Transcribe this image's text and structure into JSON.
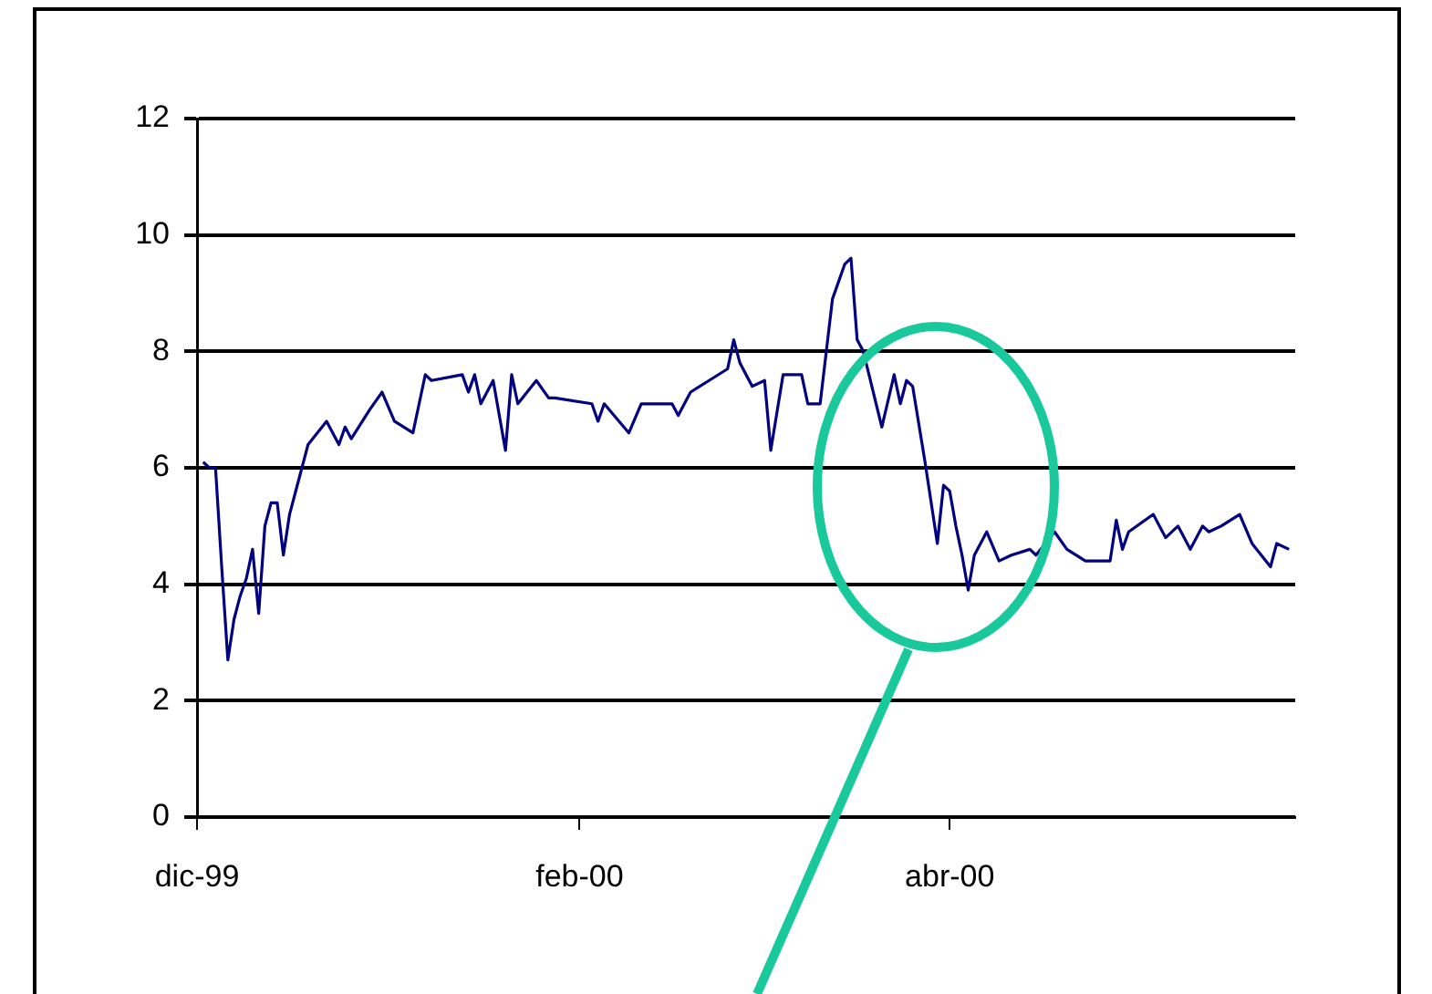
{
  "chart_data": {
    "type": "line",
    "x": [
      "1999-12-02",
      "1999-12-03",
      "1999-12-04",
      "1999-12-05",
      "1999-12-06",
      "1999-12-07",
      "1999-12-08",
      "1999-12-09",
      "1999-12-10",
      "1999-12-11",
      "1999-12-12",
      "1999-12-13",
      "1999-12-14",
      "1999-12-15",
      "1999-12-16",
      "1999-12-18",
      "1999-12-19",
      "1999-12-22",
      "1999-12-24",
      "1999-12-25",
      "1999-12-26",
      "1999-12-29",
      "1999-12-31",
      "2000-01-02",
      "2000-01-05",
      "2000-01-06",
      "2000-01-07",
      "2000-01-08",
      "2000-01-13",
      "2000-01-14",
      "2000-01-15",
      "2000-01-16",
      "2000-01-18",
      "2000-01-20",
      "2000-01-21",
      "2000-01-22",
      "2000-01-25",
      "2000-01-27",
      "2000-01-28",
      "2000-02-03",
      "2000-02-04",
      "2000-02-05",
      "2000-02-09",
      "2000-02-11",
      "2000-02-16",
      "2000-02-17",
      "2000-02-19",
      "2000-02-22",
      "2000-02-25",
      "2000-02-26",
      "2000-02-27",
      "2000-02-29",
      "2000-03-02",
      "2000-03-03",
      "2000-03-05",
      "2000-03-08",
      "2000-03-09",
      "2000-03-11",
      "2000-03-12",
      "2000-03-13",
      "2000-03-15",
      "2000-03-16",
      "2000-03-17",
      "2000-03-18",
      "2000-03-21",
      "2000-03-23",
      "2000-03-24",
      "2000-03-25",
      "2000-03-26",
      "2000-03-28",
      "2000-03-29",
      "2000-03-30",
      "2000-03-31",
      "2000-04-01",
      "2000-04-02",
      "2000-04-03",
      "2000-04-04",
      "2000-04-05",
      "2000-04-07",
      "2000-04-09",
      "2000-04-11",
      "2000-04-14",
      "2000-04-15",
      "2000-04-18",
      "2000-04-20",
      "2000-04-23",
      "2000-04-27",
      "2000-04-28",
      "2000-04-29",
      "2000-04-30",
      "2000-05-04",
      "2000-05-06",
      "2000-05-08",
      "2000-05-10",
      "2000-05-12",
      "2000-05-13",
      "2000-05-15",
      "2000-05-18",
      "2000-05-20",
      "2000-05-23",
      "2000-05-24",
      "2000-05-26"
    ],
    "series": [
      {
        "color": "#000080",
        "values": [
          6.1,
          6.0,
          6.0,
          4.3,
          2.7,
          3.4,
          3.8,
          4.1,
          4.6,
          3.5,
          5.0,
          5.4,
          5.4,
          4.5,
          5.2,
          6.0,
          6.4,
          6.8,
          6.4,
          6.7,
          6.5,
          7.0,
          7.3,
          6.8,
          6.6,
          7.1,
          7.6,
          7.5,
          7.6,
          7.3,
          7.6,
          7.1,
          7.5,
          6.3,
          7.6,
          7.1,
          7.5,
          7.2,
          7.2,
          7.1,
          6.8,
          7.1,
          6.6,
          7.1,
          7.1,
          6.9,
          7.3,
          7.5,
          7.7,
          8.2,
          7.8,
          7.4,
          7.5,
          6.3,
          7.6,
          7.6,
          7.1,
          7.1,
          8.0,
          8.9,
          9.5,
          9.6,
          8.2,
          8.0,
          6.7,
          7.6,
          7.1,
          7.5,
          7.4,
          6.1,
          5.4,
          4.7,
          5.7,
          5.6,
          5.0,
          4.5,
          3.9,
          4.5,
          4.9,
          4.4,
          4.5,
          4.6,
          4.5,
          4.9,
          4.6,
          4.4,
          4.4,
          5.1,
          4.6,
          4.9,
          5.2,
          4.8,
          5.0,
          4.6,
          5.0,
          4.9,
          5.0,
          5.2,
          4.7,
          4.3,
          4.7,
          4.6
        ]
      }
    ],
    "xlim": [
      "1999-12-01",
      "2000-05-27"
    ],
    "xticks": [
      {
        "value": "1999-12-01",
        "label": "dic-99"
      },
      {
        "value": "2000-02-01",
        "label": "feb-00"
      },
      {
        "value": "2000-04-01",
        "label": "abr-00"
      }
    ],
    "ylim": [
      0,
      12
    ],
    "yticks": [
      0,
      2,
      4,
      6,
      8,
      10,
      12
    ],
    "grid": "y",
    "legend": false,
    "marker": "none",
    "line_style": "solid"
  }
}
